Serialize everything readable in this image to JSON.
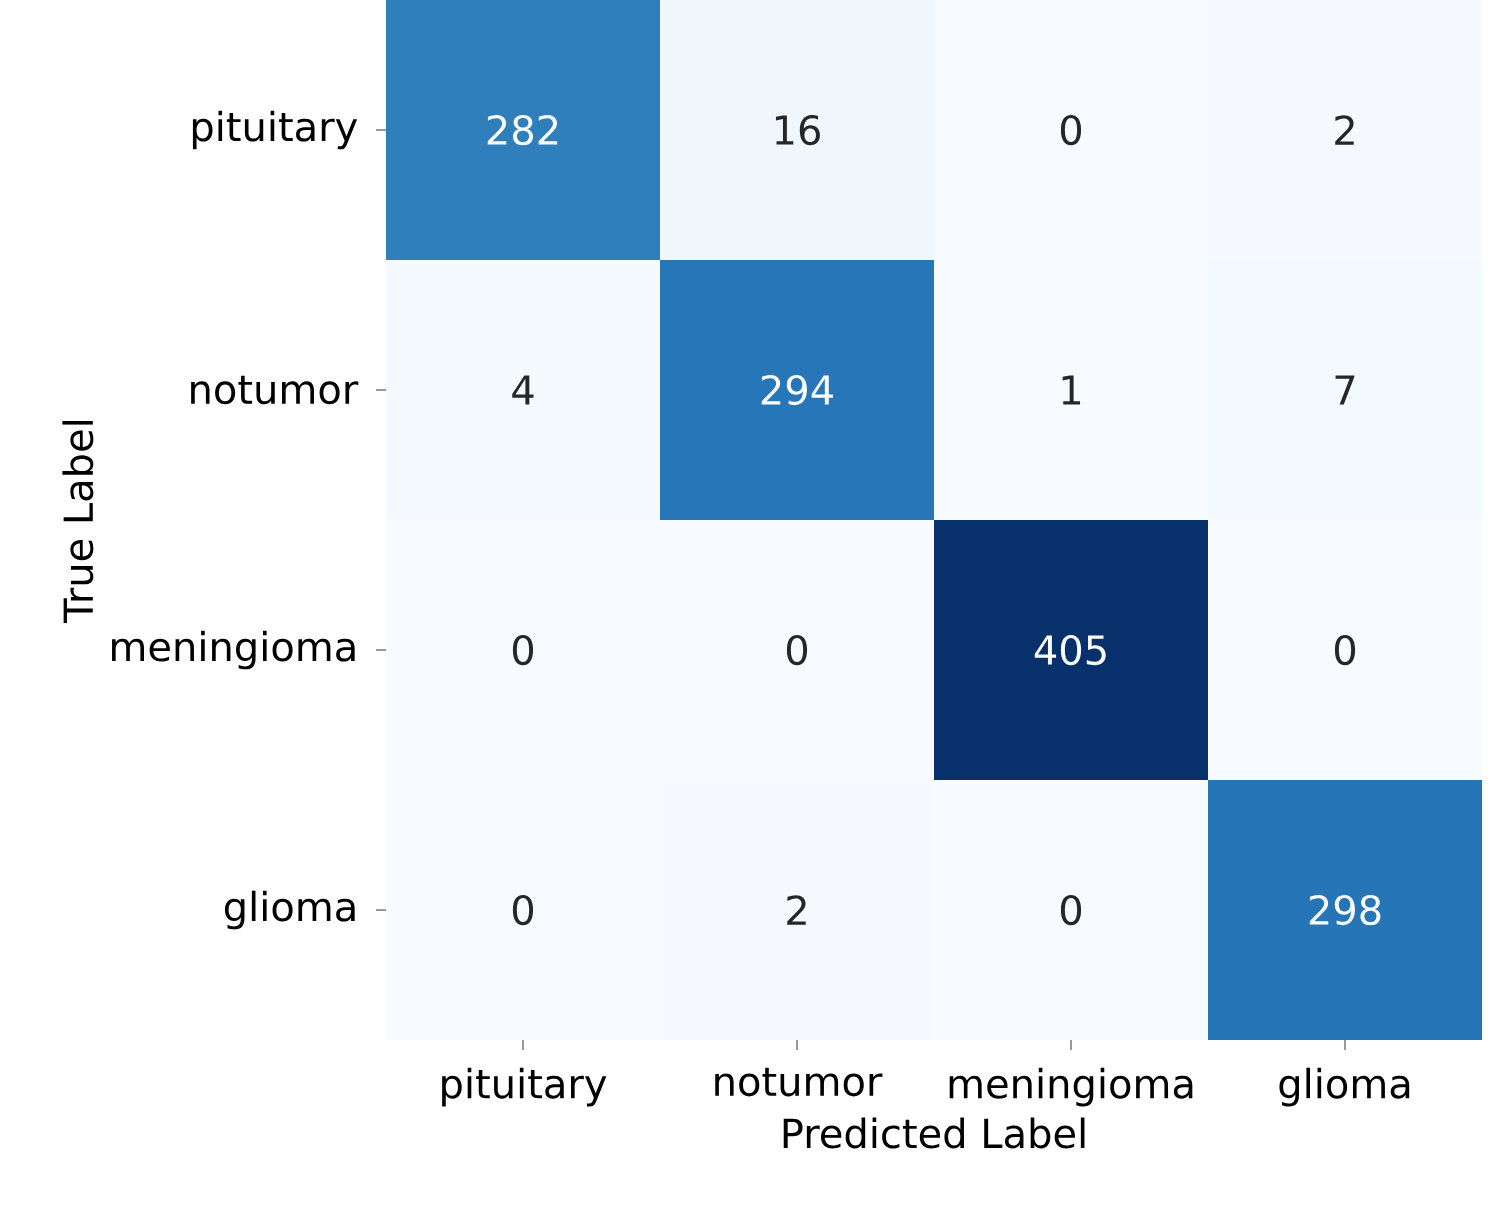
{
  "chart_data": {
    "type": "heatmap",
    "data_labels": true,
    "xlabel": "Predicted Label",
    "ylabel": "True Label",
    "categories": [
      "pituitary",
      "notumor",
      "meningioma",
      "glioma"
    ],
    "y_categories": [
      "pituitary",
      "notumor",
      "meningioma",
      "glioma"
    ],
    "cells": [
      [
        282,
        16,
        0,
        2
      ],
      [
        4,
        294,
        1,
        7
      ],
      [
        0,
        0,
        405,
        0
      ],
      [
        0,
        2,
        0,
        298
      ]
    ]
  }
}
